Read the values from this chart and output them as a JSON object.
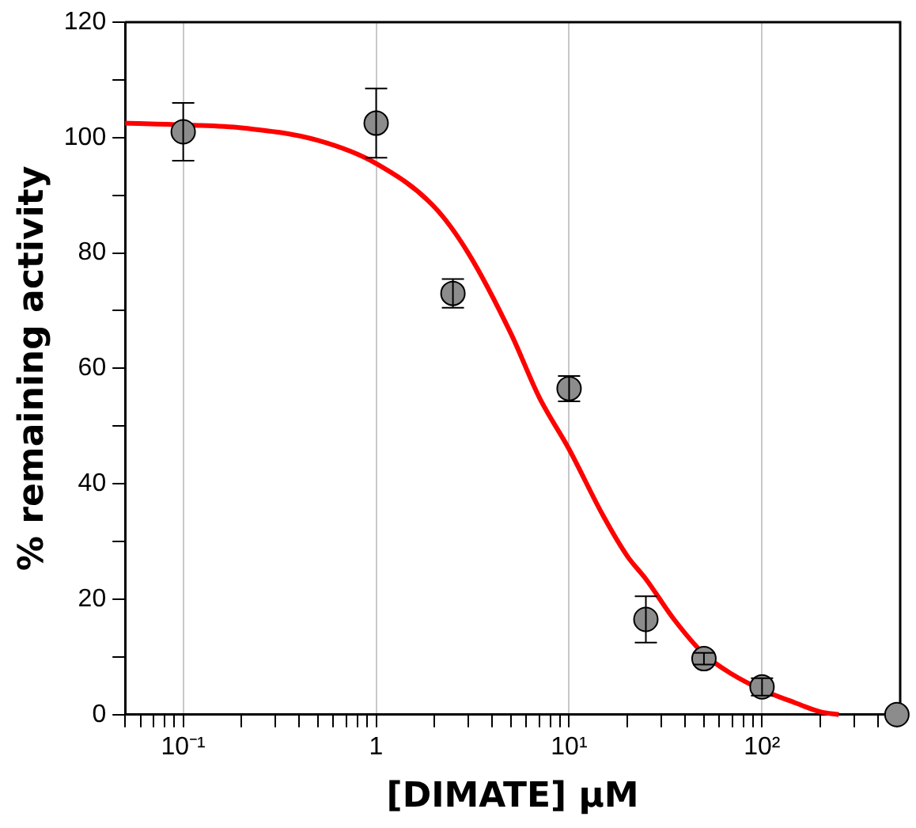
{
  "chart_data": {
    "type": "scatter",
    "xlabel": "[DIMATE] μM",
    "ylabel": "% remaining activity",
    "log": "x",
    "grid": "x",
    "marker": "circle",
    "xlim": [
      0.05,
      520
    ],
    "xticks": [
      {
        "value": 0.05,
        "label": null
      },
      {
        "value": 0.06,
        "label": null
      },
      {
        "value": 0.07,
        "label": null
      },
      {
        "value": 0.08,
        "label": null
      },
      {
        "value": 0.09,
        "label": null
      },
      {
        "value": 0.1,
        "label": "10⁻¹"
      },
      {
        "value": 0.2,
        "label": null
      },
      {
        "value": 0.3,
        "label": null
      },
      {
        "value": 0.4,
        "label": null
      },
      {
        "value": 0.5,
        "label": null
      },
      {
        "value": 0.6,
        "label": null
      },
      {
        "value": 0.7,
        "label": null
      },
      {
        "value": 0.8,
        "label": null
      },
      {
        "value": 0.9,
        "label": null
      },
      1,
      {
        "value": 2,
        "label": null
      },
      {
        "value": 3,
        "label": null
      },
      {
        "value": 4,
        "label": null
      },
      {
        "value": 5,
        "label": null
      },
      {
        "value": 6,
        "label": null
      },
      {
        "value": 7,
        "label": null
      },
      {
        "value": 8,
        "label": null
      },
      {
        "value": 9,
        "label": null
      },
      {
        "value": 10,
        "label": "10¹"
      },
      {
        "value": 20,
        "label": null
      },
      {
        "value": 30,
        "label": null
      },
      {
        "value": 40,
        "label": null
      },
      {
        "value": 50,
        "label": null
      },
      {
        "value": 60,
        "label": null
      },
      {
        "value": 70,
        "label": null
      },
      {
        "value": 80,
        "label": null
      },
      {
        "value": 90,
        "label": null
      },
      {
        "value": 100,
        "label": "10²"
      },
      {
        "value": 200,
        "label": null
      },
      {
        "value": 300,
        "label": null
      },
      {
        "value": 400,
        "label": null
      },
      {
        "value": 500,
        "label": null
      }
    ],
    "ylim": [
      0,
      120
    ],
    "yticks": [
      0,
      {
        "value": 10,
        "label": null
      },
      20,
      {
        "value": 30,
        "label": null
      },
      40,
      {
        "value": 50,
        "label": null
      },
      60,
      {
        "value": 70,
        "label": null
      },
      80,
      {
        "value": 90,
        "label": null
      },
      100,
      {
        "value": 110,
        "label": null
      },
      120
    ],
    "series": [
      {
        "type": "line",
        "color": "#ff0000",
        "marker": "none",
        "x": [
          0.05,
          0.1,
          0.2,
          0.5,
          1,
          2,
          3,
          5,
          7,
          10,
          15,
          20,
          25,
          35,
          50,
          70,
          100,
          150,
          200,
          250
        ],
        "values": [
          102.5,
          102.2,
          101.7,
          99.5,
          95.5,
          88,
          80,
          66,
          55,
          46,
          34.5,
          27.5,
          23.5,
          16.5,
          10.5,
          7,
          4.3,
          2,
          0.5,
          0
        ]
      },
      {
        "type": "scatter",
        "color": "#8c8c8c",
        "x": [
          0.1,
          1,
          2.5,
          10,
          25,
          50,
          100,
          500
        ],
        "values": [
          101,
          102.5,
          73,
          56.5,
          16.5,
          9.7,
          4.8,
          0
        ],
        "errors": [
          5,
          6,
          2.5,
          2.2,
          4,
          1,
          1.5,
          null
        ]
      }
    ]
  }
}
